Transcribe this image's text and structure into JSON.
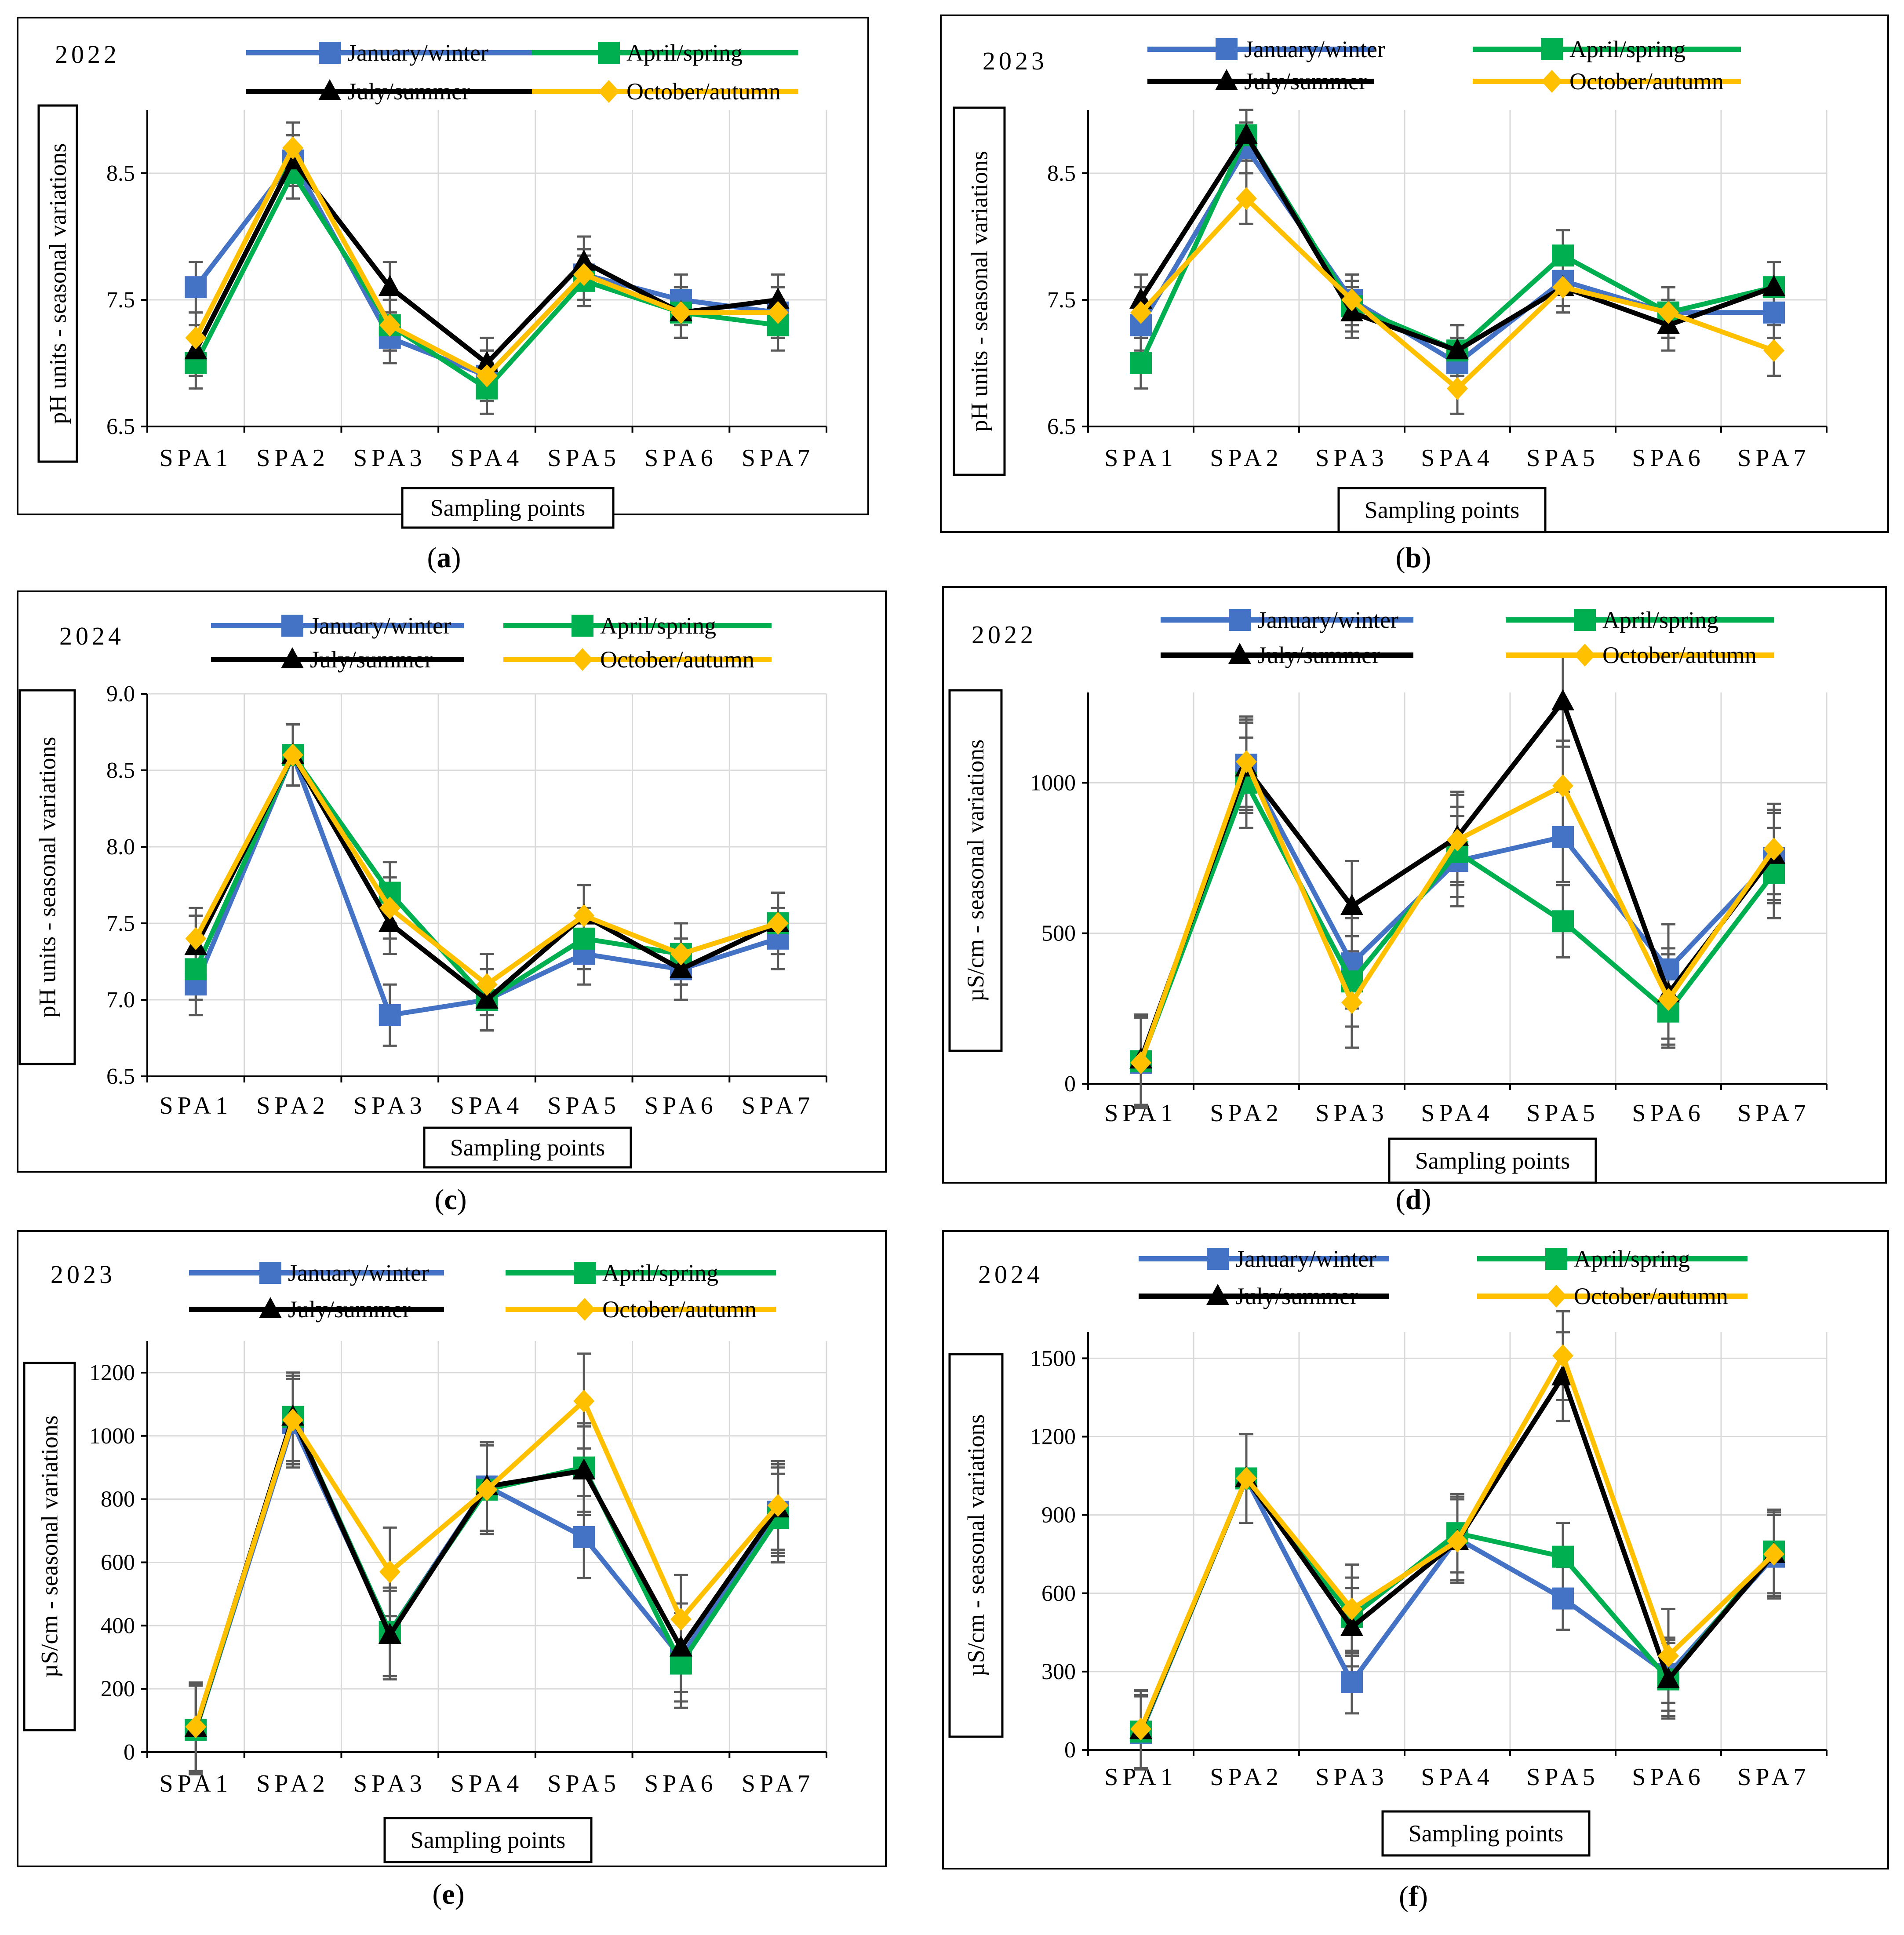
{
  "figure": {
    "colors": {
      "winter": "#4472C4",
      "spring": "#00B050",
      "summer": "#000000",
      "autumn": "#FFC000",
      "grid": "#D9D9D9",
      "error_bar": "#595959"
    },
    "series_markers": {
      "winter": "square",
      "spring": "square",
      "summer": "triangle",
      "autumn": "diamond"
    }
  },
  "chart_data": [
    {
      "panel_label": "a",
      "type": "line",
      "year_label": "2022",
      "ylabel": "pH units - seasonal variations",
      "xlabel": "Sampling points",
      "categories": [
        "SPA1",
        "SPA2",
        "SPA3",
        "SPA4",
        "SPA5",
        "SPA6",
        "SPA7"
      ],
      "ylim": [
        6.5,
        9.0
      ],
      "yticks": [
        6.5,
        7.5,
        8.5
      ],
      "series": [
        {
          "key": "winter",
          "name": "January/winter",
          "values": [
            7.6,
            8.6,
            7.2,
            6.9,
            7.7,
            7.5,
            7.4
          ],
          "errors": [
            0.2,
            0.2,
            0.2,
            0.2,
            0.2,
            0.2,
            0.2
          ]
        },
        {
          "key": "spring",
          "name": "April/spring",
          "values": [
            7.0,
            8.5,
            7.3,
            6.8,
            7.65,
            7.4,
            7.3
          ],
          "errors": [
            0.2,
            0.2,
            0.2,
            0.2,
            0.2,
            0.2,
            0.2
          ]
        },
        {
          "key": "summer",
          "name": "July/summer",
          "values": [
            7.1,
            8.6,
            7.6,
            7.0,
            7.8,
            7.4,
            7.5
          ],
          "errors": [
            0.2,
            0.2,
            0.2,
            0.2,
            0.2,
            0.2,
            0.2
          ]
        },
        {
          "key": "autumn",
          "name": "October/autumn",
          "values": [
            7.2,
            8.7,
            7.3,
            6.9,
            7.7,
            7.4,
            7.4
          ],
          "errors": [
            0.2,
            0.2,
            0.2,
            0.2,
            0.2,
            0.2,
            0.2
          ]
        }
      ]
    },
    {
      "panel_label": "b",
      "type": "line",
      "year_label": "2023",
      "ylabel": "pH units - seasonal variations",
      "xlabel": "Sampling points",
      "categories": [
        "SPA1",
        "SPA2",
        "SPA3",
        "SPA4",
        "SPA5",
        "SPA6",
        "SPA7"
      ],
      "ylim": [
        6.5,
        9.0
      ],
      "yticks": [
        6.5,
        7.5,
        8.5
      ],
      "series": [
        {
          "key": "winter",
          "name": "January/winter",
          "values": [
            7.3,
            8.7,
            7.5,
            7.0,
            7.65,
            7.4,
            7.4
          ],
          "errors": [
            0.2,
            0.2,
            0.2,
            0.2,
            0.2,
            0.2,
            0.2
          ]
        },
        {
          "key": "spring",
          "name": "April/spring",
          "values": [
            7.0,
            8.8,
            7.45,
            7.1,
            7.85,
            7.4,
            7.6
          ],
          "errors": [
            0.2,
            0.2,
            0.2,
            0.2,
            0.2,
            0.2,
            0.2
          ]
        },
        {
          "key": "summer",
          "name": "July/summer",
          "values": [
            7.5,
            8.8,
            7.4,
            7.1,
            7.6,
            7.3,
            7.6
          ],
          "errors": [
            0.2,
            0.2,
            0.2,
            0.2,
            0.2,
            0.2,
            0.2
          ]
        },
        {
          "key": "autumn",
          "name": "October/autumn",
          "values": [
            7.4,
            8.3,
            7.5,
            6.8,
            7.6,
            7.4,
            7.1
          ],
          "errors": [
            0.2,
            0.2,
            0.2,
            0.2,
            0.2,
            0.2,
            0.2
          ]
        }
      ]
    },
    {
      "panel_label": "c",
      "type": "line",
      "year_label": "2024",
      "ylabel": "pH units - seasonal variations",
      "xlabel": "Sampling points",
      "categories": [
        "SPA1",
        "SPA2",
        "SPA3",
        "SPA4",
        "SPA5",
        "SPA6",
        "SPA7"
      ],
      "ylim": [
        6.5,
        9.0
      ],
      "yticks": [
        6.5,
        7.0,
        7.5,
        8.0,
        8.5,
        9.0
      ],
      "ytick_decimals": 1,
      "series": [
        {
          "key": "winter",
          "name": "January/winter",
          "values": [
            7.1,
            8.6,
            6.9,
            7.0,
            7.3,
            7.2,
            7.4
          ],
          "errors": [
            0.2,
            0.2,
            0.2,
            0.2,
            0.2,
            0.2,
            0.2
          ]
        },
        {
          "key": "spring",
          "name": "April/spring",
          "values": [
            7.2,
            8.6,
            7.7,
            7.0,
            7.4,
            7.3,
            7.5
          ],
          "errors": [
            0.2,
            0.2,
            0.2,
            0.2,
            0.2,
            0.2,
            0.2
          ]
        },
        {
          "key": "summer",
          "name": "July/summer",
          "values": [
            7.35,
            8.6,
            7.5,
            7.0,
            7.55,
            7.2,
            7.5
          ],
          "errors": [
            0.2,
            0.2,
            0.2,
            0.2,
            0.2,
            0.2,
            0.2
          ]
        },
        {
          "key": "autumn",
          "name": "October/autumn",
          "values": [
            7.4,
            8.6,
            7.6,
            7.1,
            7.55,
            7.3,
            7.5
          ],
          "errors": [
            0.2,
            0.2,
            0.2,
            0.2,
            0.2,
            0.2,
            0.2
          ]
        }
      ]
    },
    {
      "panel_label": "d",
      "type": "line",
      "year_label": "2022",
      "ylabel": "µS/cm - seasonal variations",
      "xlabel": "Sampling points",
      "categories": [
        "SPA1",
        "SPA2",
        "SPA3",
        "SPA4",
        "SPA5",
        "SPA6",
        "SPA7"
      ],
      "ylim": [
        0,
        1300
      ],
      "yticks": [
        0,
        500,
        1000
      ],
      "series": [
        {
          "key": "winter",
          "name": "January/winter",
          "values": [
            70,
            1060,
            400,
            740,
            820,
            380,
            750
          ],
          "errors": [
            150,
            150,
            150,
            150,
            150,
            150,
            150
          ]
        },
        {
          "key": "spring",
          "name": "April/spring",
          "values": [
            75,
            1000,
            340,
            770,
            540,
            240,
            700
          ],
          "errors": [
            150,
            150,
            150,
            150,
            120,
            120,
            150
          ]
        },
        {
          "key": "summer",
          "name": "July/summer",
          "values": [
            80,
            1050,
            590,
            820,
            1270,
            300,
            760
          ],
          "errors": [
            150,
            150,
            150,
            150,
            150,
            150,
            150
          ]
        },
        {
          "key": "autumn",
          "name": "October/autumn",
          "values": [
            70,
            1070,
            270,
            810,
            990,
            280,
            780
          ],
          "errors": [
            150,
            150,
            150,
            150,
            150,
            150,
            150
          ]
        }
      ]
    },
    {
      "panel_label": "e",
      "type": "line",
      "year_label": "2023",
      "ylabel": "µS/cm - seasonal variations",
      "xlabel": "Sampling points",
      "categories": [
        "SPA1",
        "SPA2",
        "SPA3",
        "SPA4",
        "SPA5",
        "SPA6",
        "SPA7"
      ],
      "ylim": [
        0,
        1300
      ],
      "yticks": [
        0,
        200,
        400,
        600,
        800,
        1000,
        1200
      ],
      "series": [
        {
          "key": "winter",
          "name": "January/winter",
          "values": [
            70,
            1040,
            380,
            840,
            680,
            300,
            760
          ],
          "errors": [
            140,
            140,
            140,
            140,
            130,
            140,
            140
          ]
        },
        {
          "key": "spring",
          "name": "April/spring",
          "values": [
            70,
            1060,
            380,
            830,
            900,
            280,
            740
          ],
          "errors": [
            140,
            140,
            140,
            140,
            140,
            140,
            140
          ]
        },
        {
          "key": "summer",
          "name": "July/summer",
          "values": [
            75,
            1060,
            370,
            840,
            890,
            330,
            770
          ],
          "errors": [
            140,
            140,
            140,
            140,
            140,
            140,
            140
          ]
        },
        {
          "key": "autumn",
          "name": "October/autumn",
          "values": [
            80,
            1050,
            570,
            830,
            1110,
            420,
            780
          ],
          "errors": [
            140,
            140,
            140,
            140,
            150,
            140,
            140
          ]
        }
      ]
    },
    {
      "panel_label": "f",
      "type": "line",
      "year_label": "2024",
      "ylabel": "µS/cm - seasonal variations",
      "xlabel": "Sampling points",
      "categories": [
        "SPA1",
        "SPA2",
        "SPA3",
        "SPA4",
        "SPA5",
        "SPA6",
        "SPA7"
      ],
      "ylim": [
        0,
        1600
      ],
      "yticks": [
        0,
        300,
        600,
        900,
        1200,
        1500
      ],
      "series": [
        {
          "key": "winter",
          "name": "January/winter",
          "values": [
            65,
            1040,
            260,
            810,
            580,
            290,
            740
          ],
          "errors": [
            140,
            170,
            120,
            160,
            120,
            140,
            160
          ]
        },
        {
          "key": "spring",
          "name": "April/spring",
          "values": [
            70,
            1040,
            510,
            830,
            740,
            270,
            760
          ],
          "errors": [
            140,
            170,
            150,
            150,
            130,
            140,
            160
          ]
        },
        {
          "key": "summer",
          "name": "July/summer",
          "values": [
            75,
            1040,
            470,
            800,
            1430,
            270,
            750
          ],
          "errors": [
            150,
            170,
            150,
            160,
            170,
            150,
            160
          ]
        },
        {
          "key": "autumn",
          "name": "October/autumn",
          "values": [
            80,
            1040,
            540,
            800,
            1510,
            360,
            750
          ],
          "errors": [
            150,
            170,
            170,
            160,
            170,
            180,
            170
          ]
        }
      ]
    }
  ]
}
